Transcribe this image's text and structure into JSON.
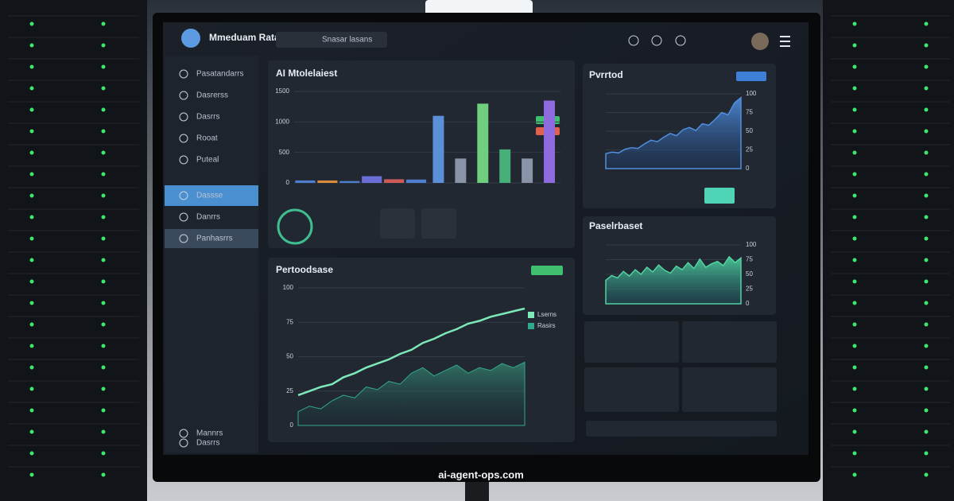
{
  "header": {
    "title": "Mmeduam Rata",
    "search": "Snasar lasans"
  },
  "sidebar": {
    "items": [
      "Pasatandarrs",
      "Dasrerss",
      "Dasrrs",
      "Rooat",
      "Puteal",
      "Dassse",
      "Danrrs",
      "Panhasrrs",
      "Mannrs",
      "Dasrrs"
    ]
  },
  "footer_brand": "ai-agent-ops.com",
  "chart_data": [
    {
      "type": "bar",
      "title": "AI Mtolelaiest",
      "ylim": [
        0,
        1500
      ],
      "yticks": [
        0,
        500,
        1000,
        1500
      ],
      "values": [
        40,
        40,
        30,
        110,
        60,
        55,
        1100,
        400,
        1300,
        550,
        400,
        1350
      ],
      "colors": [
        "#4f7fd0",
        "#d98a3a",
        "#4f7fd0",
        "#6c6ed8",
        "#d05a5a",
        "#4f7fd0",
        "#5b8fd8",
        "#8a94a8",
        "#6fcf7f",
        "#47b07a",
        "#8a94a8",
        "#8f6be0"
      ]
    },
    {
      "type": "area",
      "title": "Pvrrtod",
      "color": "#4f8fe0",
      "ylim": [
        0,
        100
      ],
      "yticks": [
        0,
        25,
        50,
        75,
        100
      ],
      "values": [
        20,
        22,
        21,
        26,
        28,
        27,
        33,
        38,
        36,
        42,
        47,
        44,
        52,
        55,
        51,
        60,
        58,
        66,
        75,
        72,
        88,
        95
      ]
    },
    {
      "type": "area",
      "title": "Paselrbaset",
      "color": "#4fd4a0",
      "ylim": [
        0,
        100
      ],
      "yticks": [
        0,
        25,
        50,
        75,
        100
      ],
      "values": [
        40,
        48,
        44,
        55,
        47,
        58,
        50,
        62,
        54,
        66,
        57,
        52,
        64,
        58,
        70,
        60,
        76,
        62,
        68,
        72,
        65,
        80,
        70,
        78
      ]
    },
    {
      "type": "line",
      "title": "Pertoodsase",
      "ylim": [
        0,
        100
      ],
      "yticks": [
        0,
        25,
        50,
        75,
        100
      ],
      "series": [
        {
          "name": "Lserns",
          "color": "#7de8b8",
          "values": [
            22,
            25,
            28,
            30,
            35,
            38,
            42,
            45,
            48,
            52,
            55,
            60,
            63,
            67,
            70,
            74,
            76,
            79,
            81,
            83,
            85
          ]
        },
        {
          "name": "Rasirs",
          "color": "#2fa98a",
          "values": [
            10,
            14,
            12,
            18,
            22,
            20,
            28,
            26,
            32,
            30,
            38,
            42,
            36,
            40,
            44,
            38,
            42,
            40,
            45,
            42,
            46
          ]
        }
      ]
    }
  ]
}
